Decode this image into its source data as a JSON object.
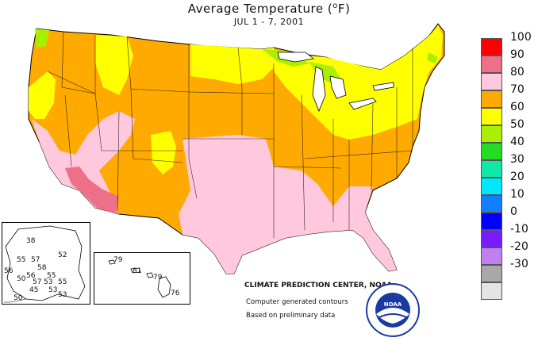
{
  "title_main": "Average Temperature (",
  "title_unit": "F)",
  "title_deg": "o",
  "subtitle": "JUL 1 - 7, 2001",
  "legend": {
    "labels": [
      "100",
      "90",
      "80",
      "70",
      "60",
      "50",
      "40",
      "30",
      "20",
      "10",
      "0",
      "-10",
      "-20",
      "-30"
    ],
    "colors": [
      "#ff0000",
      "#ee7088",
      "#ffc8dc",
      "#ffaa00",
      "#ffff00",
      "#aaee00",
      "#22dd22",
      "#10e8a8",
      "#00e8ff",
      "#1080ff",
      "#0000ff",
      "#7a1aff",
      "#c080f0",
      "#a8a8a8",
      "#e4e4e4"
    ]
  },
  "alaska_stations": [
    "38",
    "55",
    "57",
    "52",
    "58",
    "56",
    "50",
    "56",
    "55",
    "57",
    "53",
    "55",
    "45",
    "53",
    "50",
    "53"
  ],
  "hawaii_stations": [
    "79",
    "81",
    "79",
    "76"
  ],
  "credit": {
    "org": "CLIMATE PREDICTION CENTER, NOAA",
    "line1": "Computer generated contours",
    "line2": "Based on preliminary data"
  },
  "logo_text": "NOAA",
  "colors": {
    "orange": "#ffaa00",
    "yellow": "#ffff00",
    "pink": "#ffc8dc",
    "rose": "#ee7088",
    "green": "#aaee00",
    "lake": "#ffffff"
  }
}
